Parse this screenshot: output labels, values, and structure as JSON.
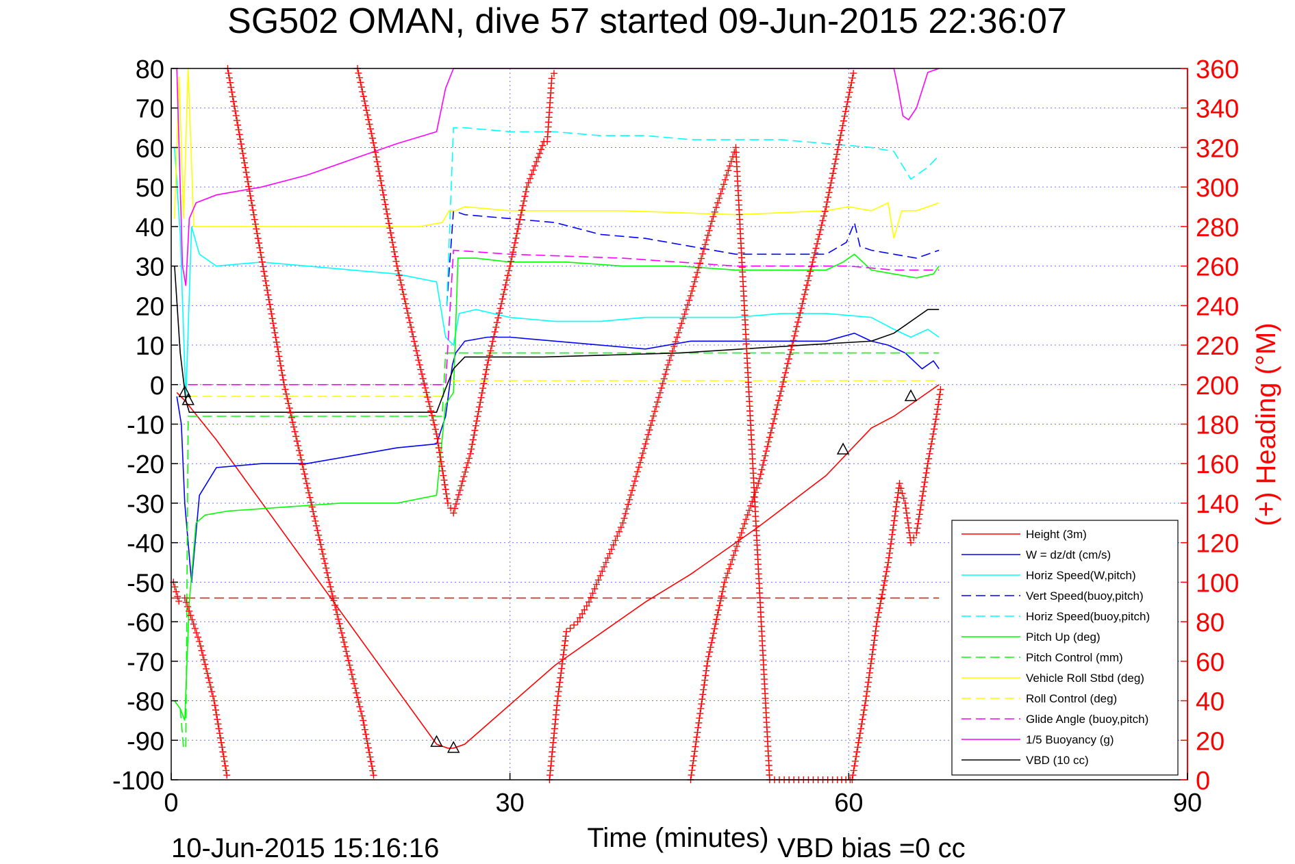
{
  "chart_data": {
    "type": "line",
    "title": "SG502 OMAN, dive 57 started 09-Jun-2015 22:36:07",
    "xlabel": "Time (minutes)",
    "ylabel_right": "(+) Heading (°M)",
    "footer_left": "10-Jun-2015 15:16:16",
    "footer_right": "VBD bias =0 cc",
    "xlim": [
      0,
      90
    ],
    "ylim": [
      -100,
      80
    ],
    "y2lim": [
      0,
      360
    ],
    "x_ticks": [
      "0",
      "30",
      "60",
      "90"
    ],
    "y_ticks": [
      "80",
      "70",
      "60",
      "50",
      "40",
      "30",
      "20",
      "10",
      "0",
      "-10",
      "-20",
      "-30",
      "-40",
      "-50",
      "-60",
      "-70",
      "-80",
      "-90",
      "-100"
    ],
    "y2_ticks": [
      "360",
      "340",
      "320",
      "300",
      "280",
      "260",
      "240",
      "220",
      "200",
      "180",
      "160",
      "140",
      "120",
      "100",
      "80",
      "60",
      "40",
      "20",
      "0"
    ],
    "grid": true,
    "legend_position": "bottom-right",
    "colors": {
      "height": "#ff0000",
      "w": "#0000ff",
      "horiz_speed": "#00ffff",
      "pitch": "#00ff00",
      "roll": "#ffff00",
      "glide": "#ff00ff",
      "buoyancy": "#ff00ff",
      "vbd": "#000000",
      "heading": "#ff0000",
      "grid": "#7070ff"
    },
    "series": [
      {
        "name": "Height (3m)",
        "color": "#ff0000",
        "dash": "solid",
        "x": [
          0.5,
          1.2,
          4,
          23.5,
          24.5,
          25,
          26,
          34,
          42,
          46,
          52,
          58,
          62,
          64,
          66,
          67.5,
          68
        ],
        "y": [
          -2,
          -4,
          -14,
          -91,
          -92,
          -92,
          -91,
          -71,
          -55,
          -48,
          -36,
          -23,
          -11,
          -8,
          -4,
          -1,
          0
        ]
      },
      {
        "name": "W = dz/dt (cm/s)",
        "color": "#0000ff",
        "dash": "solid",
        "x": [
          0.5,
          0.9,
          1.2,
          1.8,
          2.5,
          4,
          8,
          12,
          16,
          20,
          23.5,
          24.3,
          24.9,
          25.2,
          26,
          28,
          30,
          34,
          38,
          42,
          46,
          50,
          54,
          58,
          60.5,
          62,
          63.5,
          65,
          66.5,
          67.5,
          68
        ],
        "y": [
          -3,
          -10,
          -30,
          -50,
          -28,
          -21,
          -20,
          -20,
          -18,
          -16,
          -15,
          -8,
          5,
          8,
          11,
          12,
          12,
          11,
          10,
          9,
          11,
          11,
          11,
          11,
          13,
          11,
          10,
          8,
          4,
          6,
          4
        ]
      },
      {
        "name": "Horiz Speed(W,pitch)",
        "color": "#00ffff",
        "dash": "solid",
        "x": [
          0.3,
          0.8,
          1.3,
          1.8,
          2.5,
          4,
          8,
          12,
          16,
          20,
          23.5,
          24.3,
          25.0,
          25.5,
          27,
          30,
          34,
          38,
          42,
          46,
          50,
          54,
          58,
          62,
          64,
          65.5,
          67,
          68
        ],
        "y": [
          60,
          38,
          -4,
          40,
          33,
          30,
          31,
          30,
          29,
          28,
          26,
          12,
          10,
          18,
          19,
          17,
          16,
          16,
          17,
          17,
          17,
          18,
          18,
          17,
          14,
          12,
          14,
          12
        ]
      },
      {
        "name": "Vert Speed(buoy,pitch)",
        "color": "#0000ff",
        "dash": "dashed",
        "x": [
          24.4,
          25.0,
          26,
          30,
          34,
          38,
          42,
          46,
          50,
          54,
          58,
          59.8,
          60.5,
          61,
          62,
          64,
          66,
          68
        ],
        "y": [
          20,
          44,
          43,
          42,
          41,
          38,
          37,
          35,
          33,
          33,
          33,
          36,
          41,
          35,
          34,
          33,
          32,
          34
        ]
      },
      {
        "name": "Horiz Speed(buoy,pitch)",
        "color": "#00ffff",
        "dash": "dashed",
        "x": [
          24.4,
          25.0,
          26,
          30,
          34,
          38,
          42,
          46,
          50,
          54,
          58,
          62,
          64,
          65.5,
          67,
          68
        ],
        "y": [
          20,
          65,
          65,
          64,
          64,
          63,
          63,
          62,
          62,
          62,
          61,
          60,
          59,
          52,
          55,
          58
        ]
      },
      {
        "name": "Pitch Up (deg)",
        "color": "#00ff00",
        "dash": "solid",
        "x": [
          0.3,
          0.8,
          1.2,
          1.6,
          2.2,
          3,
          5,
          10,
          15,
          20,
          23.5,
          24.3,
          25.0,
          25.4,
          27,
          30,
          35,
          40,
          45,
          50,
          55,
          58,
          59.5,
          60.5,
          62,
          64,
          66,
          67.5,
          68
        ],
        "y": [
          -80,
          -82,
          -85,
          -55,
          -35,
          -33,
          -32,
          -31,
          -30,
          -30,
          -28,
          -5,
          -2,
          32,
          32,
          31,
          31,
          30,
          30,
          29,
          29,
          29,
          31,
          33,
          29,
          28,
          27,
          28,
          30
        ]
      },
      {
        "name": "Pitch Control (mm)",
        "color": "#00ff00",
        "dash": "dashed",
        "x": [
          0.8,
          1.1,
          1.3,
          1.5,
          24.0,
          24.3,
          25.2,
          68
        ],
        "y": [
          -82,
          -92,
          -92,
          -8,
          -8,
          8,
          8,
          8
        ]
      },
      {
        "name": "Vehicle Roll Stbd (deg)",
        "color": "#ffff00",
        "dash": "solid",
        "x": [
          0.3,
          0.7,
          1.1,
          1.5,
          2.0,
          4,
          10,
          16,
          22,
          24.0,
          24.6,
          25.2,
          26,
          30,
          40,
          50,
          58,
          60,
          62,
          63.5,
          64,
          64.7,
          66,
          68
        ],
        "y": [
          42,
          78,
          42,
          80,
          40,
          40,
          40,
          40,
          40,
          41,
          44,
          44,
          45,
          44,
          44,
          43,
          44,
          45,
          44,
          46,
          37,
          44,
          44,
          46
        ]
      },
      {
        "name": "Roll Control (deg)",
        "color": "#ffff00",
        "dash": "dashed",
        "x": [
          1.5,
          24.0,
          24.6,
          68
        ],
        "y": [
          -3,
          -3,
          1,
          1
        ]
      },
      {
        "name": "Glide Angle (buoy,pitch)",
        "color": "#ff00ff",
        "dash": "dashed",
        "x": [
          1.5,
          24.3,
          25,
          30,
          40,
          50,
          60,
          64,
          68
        ],
        "y": [
          0,
          0,
          34,
          33,
          32,
          30,
          30,
          29,
          29
        ]
      },
      {
        "name": "1/5 Buoyancy (g)",
        "color": "#ff00ff",
        "dash": "solid",
        "x": [
          0.5,
          1.0,
          1.3,
          1.6,
          2.2,
          4,
          8,
          12,
          16,
          20,
          23.5,
          24.3,
          25.0,
          64,
          64.3,
          64.8,
          65.3,
          66,
          67,
          68
        ],
        "y": [
          80,
          30,
          25,
          42,
          46,
          48,
          50,
          53,
          57,
          61,
          64,
          75,
          80,
          80,
          76,
          68,
          67,
          70,
          79,
          80
        ]
      },
      {
        "name": "VBD (10 cc)",
        "color": "#000000",
        "dash": "solid",
        "x": [
          0.3,
          0.8,
          1.3,
          1.6,
          23.5,
          24.3,
          25.0,
          26.0,
          33,
          45,
          56,
          62,
          63,
          64,
          65,
          66,
          67,
          68
        ],
        "y": [
          30,
          8,
          -4,
          -7,
          -7,
          -1,
          4,
          7,
          7,
          8,
          10,
          11,
          12,
          13,
          15,
          17,
          19,
          19
        ]
      }
    ],
    "heading": {
      "name": "Heading",
      "marker": "+",
      "color": "#ff0000",
      "axis": "right",
      "segments": [
        {
          "x": [
            0.2,
            0.8
          ],
          "y": [
            100,
            88
          ]
        },
        {
          "x": [
            1.2,
            2.5,
            3.8,
            5.0
          ],
          "y": [
            92,
            70,
            40,
            0
          ]
        },
        {
          "x": [
            5.0,
            10.0,
            12.0,
            14.0,
            17.0,
            18.0
          ],
          "y": [
            360,
            200,
            150,
            100,
            30,
            0
          ]
        },
        {
          "x": [
            16.5,
            18.0,
            20.0,
            22.0,
            23.5,
            24.5,
            25.0
          ],
          "y": [
            360,
            320,
            260,
            210,
            175,
            140,
            135
          ]
        },
        {
          "x": [
            25.0,
            26.5,
            28.0,
            30.0,
            31.5,
            32.5,
            33.0,
            33.3,
            33.7,
            34.1
          ],
          "y": [
            135,
            165,
            210,
            260,
            300,
            315,
            323,
            323,
            355,
            360
          ]
        },
        {
          "x": [
            33.5,
            34.2,
            35.0,
            36.0,
            37.0,
            38.5,
            40.0,
            42.0,
            44.0,
            46.0,
            48.0,
            50.0,
            53.0,
            56.0,
            59.0,
            60.5
          ],
          "y": [
            0,
            40,
            75,
            80,
            90,
            110,
            130,
            170,
            210,
            245,
            285,
            320,
            0,
            0,
            0,
            0
          ]
        },
        {
          "x": [
            46.0,
            47.5,
            49.0,
            52.0,
            55.0,
            58.0,
            60.5
          ],
          "y": [
            0,
            60,
            100,
            150,
            220,
            290,
            360
          ]
        },
        {
          "x": [
            60.3,
            61.5,
            62.5,
            63.5,
            64.5,
            65.0,
            65.5,
            66.0,
            67.0,
            67.8,
            68.2
          ],
          "y": [
            0,
            40,
            80,
            110,
            150,
            140,
            120,
            125,
            160,
            185,
            200
          ]
        }
      ]
    },
    "hlines": [
      {
        "y": -54,
        "color": "#ff0000",
        "dash": "dashed",
        "x": [
          0,
          68
        ]
      }
    ],
    "triangles": [
      {
        "x": 1.2,
        "y": -2
      },
      {
        "x": 1.5,
        "y": -4
      },
      {
        "x": 23.5,
        "y": -90.5
      },
      {
        "x": 25.0,
        "y": -92
      },
      {
        "x": 59.5,
        "y": -16.5
      },
      {
        "x": 65.5,
        "y": -3
      }
    ],
    "legend": [
      "Height (3m)",
      "W = dz/dt (cm/s)",
      "Horiz Speed(W,pitch)",
      "Vert Speed(buoy,pitch)",
      "Horiz Speed(buoy,pitch)",
      "Pitch Up (deg)",
      "Pitch Control (mm)",
      "Vehicle Roll Stbd (deg)",
      "Roll Control (deg)",
      "Glide Angle (buoy,pitch)",
      "1/5 Buoyancy (g)",
      "VBD (10 cc)"
    ]
  }
}
